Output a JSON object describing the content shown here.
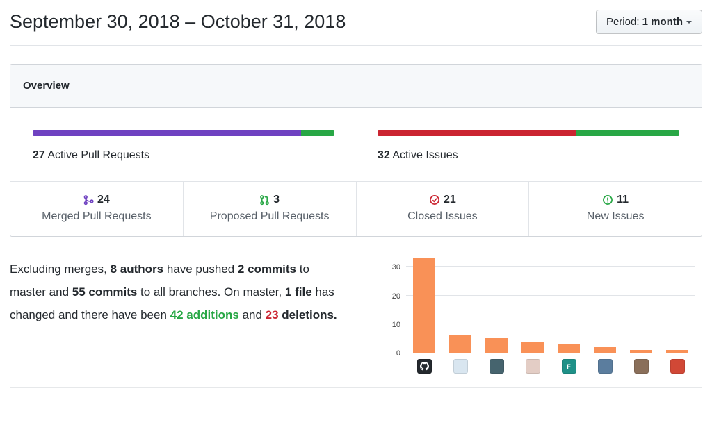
{
  "colors": {
    "purple": "#6f42c1",
    "green": "#28a745",
    "red": "#cb2431",
    "orange": "#f99157"
  },
  "header": {
    "title": "September 30, 2018 – October 31, 2018",
    "period_label": "Period:",
    "period_value": "1 month"
  },
  "overview": {
    "title": "Overview",
    "pull_requests": {
      "count": "27",
      "label": "Active Pull Requests",
      "merged": 24,
      "proposed": 3
    },
    "issues": {
      "count": "32",
      "label": "Active Issues",
      "closed": 21,
      "new": 11
    },
    "stats": [
      {
        "icon": "git-merge-icon",
        "value": "24",
        "label": "Merged Pull Requests",
        "color": "#6f42c1"
      },
      {
        "icon": "git-pull-request-icon",
        "value": "3",
        "label": "Proposed Pull Requests",
        "color": "#28a745"
      },
      {
        "icon": "issue-closed-icon",
        "value": "21",
        "label": "Closed Issues",
        "color": "#cb2431"
      },
      {
        "icon": "issue-opened-icon",
        "value": "11",
        "label": "New Issues",
        "color": "#28a745"
      }
    ]
  },
  "summary": {
    "segments": [
      {
        "text": "Excluding merges, ",
        "style": "normal"
      },
      {
        "text": "8 authors",
        "style": "bold"
      },
      {
        "text": " have pushed ",
        "style": "normal"
      },
      {
        "text": "2 commits",
        "style": "bold"
      },
      {
        "text": " to master and ",
        "style": "normal"
      },
      {
        "text": "55 commits",
        "style": "bold"
      },
      {
        "text": " to all branches. On master, ",
        "style": "normal"
      },
      {
        "text": "1 file",
        "style": "bold"
      },
      {
        "text": " has changed and there have been ",
        "style": "normal"
      },
      {
        "text": "42 additions",
        "style": "green"
      },
      {
        "text": " and ",
        "style": "normal"
      },
      {
        "text": "23",
        "style": "red"
      },
      {
        "text": " ",
        "style": "normal"
      },
      {
        "text": "deletions.",
        "style": "bold"
      }
    ]
  },
  "chart_data": {
    "type": "bar",
    "values": [
      33,
      6,
      5,
      4,
      3,
      2,
      1,
      1
    ],
    "x_axis": "author-avatars",
    "yticks": [
      0,
      10,
      20,
      30
    ],
    "ylim": [
      0,
      34
    ],
    "grid": true,
    "bar_color": "#f99157",
    "avatars": [
      {
        "bg": "#24292e",
        "mark": true
      },
      {
        "bg": "#d9e6f0"
      },
      {
        "bg": "#46646e"
      },
      {
        "bg": "#e3cdc5"
      },
      {
        "bg": "#1f9188",
        "text": "F"
      },
      {
        "bg": "#5b7d9e"
      },
      {
        "bg": "#8a6f5a"
      },
      {
        "bg": "#d14836"
      }
    ]
  }
}
